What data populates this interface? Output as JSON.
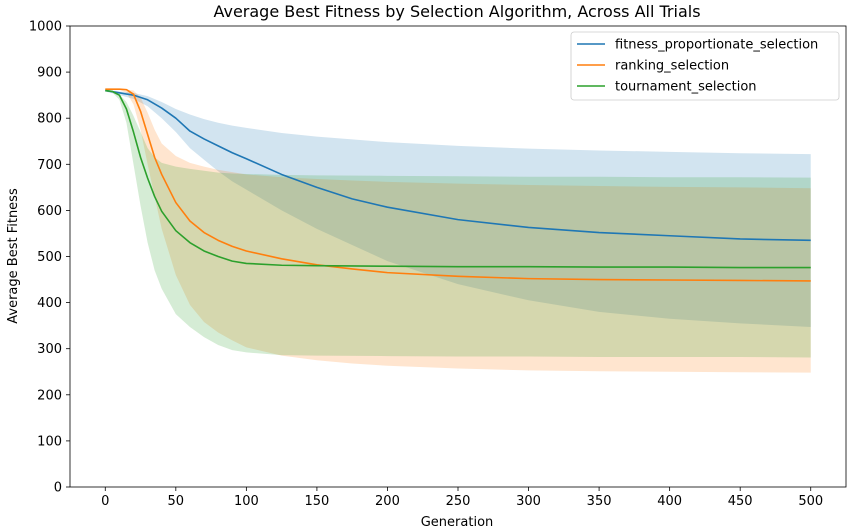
{
  "chart_data": {
    "type": "line",
    "title": "Average Best Fitness by Selection Algorithm, Across All Trials",
    "xlabel": "Generation",
    "ylabel": "Average Best Fitness",
    "xlim": [
      -25,
      525
    ],
    "ylim": [
      0,
      1000
    ],
    "xticks": [
      0,
      50,
      100,
      150,
      200,
      250,
      300,
      350,
      400,
      450,
      500
    ],
    "yticks": [
      0,
      100,
      200,
      300,
      400,
      500,
      600,
      700,
      800,
      900,
      1000
    ],
    "legend_position": "top-right",
    "grid": false,
    "band_opacity": 0.2,
    "series": [
      {
        "name": "fitness_proportionate_selection",
        "color": "#1f77b4",
        "x": [
          0,
          10,
          20,
          30,
          40,
          50,
          60,
          70,
          80,
          90,
          100,
          125,
          150,
          175,
          200,
          250,
          300,
          350,
          400,
          450,
          500
        ],
        "mean": [
          860,
          855,
          850,
          840,
          822,
          800,
          772,
          755,
          740,
          725,
          712,
          678,
          650,
          625,
          607,
          580,
          563,
          552,
          545,
          538,
          535
        ],
        "upper": [
          862,
          858,
          855,
          848,
          835,
          820,
          808,
          798,
          790,
          784,
          779,
          768,
          760,
          754,
          748,
          740,
          734,
          730,
          727,
          724,
          722
        ],
        "lower": [
          858,
          850,
          842,
          826,
          800,
          770,
          735,
          710,
          685,
          663,
          645,
          600,
          560,
          525,
          490,
          440,
          405,
          380,
          365,
          355,
          347
        ]
      },
      {
        "name": "ranking_selection",
        "color": "#ff7f0e",
        "x": [
          0,
          10,
          15,
          20,
          25,
          30,
          35,
          40,
          50,
          60,
          70,
          80,
          90,
          100,
          125,
          150,
          175,
          200,
          250,
          300,
          350,
          400,
          450,
          500
        ],
        "mean": [
          863,
          863,
          862,
          852,
          815,
          765,
          715,
          678,
          617,
          577,
          552,
          535,
          522,
          512,
          495,
          482,
          473,
          465,
          457,
          452,
          450,
          449,
          448,
          447
        ],
        "upper": [
          863,
          863,
          862,
          860,
          845,
          812,
          775,
          745,
          718,
          703,
          695,
          688,
          683,
          678,
          672,
          668,
          665,
          662,
          658,
          655,
          653,
          651,
          650,
          648
        ],
        "lower": [
          863,
          862,
          855,
          830,
          775,
          700,
          630,
          560,
          460,
          395,
          358,
          335,
          318,
          303,
          285,
          275,
          268,
          263,
          257,
          253,
          251,
          250,
          249,
          248
        ]
      },
      {
        "name": "tournament_selection",
        "color": "#2ca02c",
        "x": [
          0,
          5,
          10,
          15,
          20,
          25,
          30,
          35,
          40,
          50,
          60,
          70,
          80,
          90,
          100,
          125,
          150,
          200,
          250,
          300,
          350,
          400,
          450,
          500
        ],
        "mean": [
          860,
          858,
          850,
          820,
          770,
          715,
          670,
          630,
          598,
          556,
          530,
          512,
          500,
          490,
          485,
          481,
          480,
          479,
          478,
          478,
          477,
          477,
          476,
          476
        ],
        "upper": [
          860,
          858,
          852,
          835,
          805,
          770,
          735,
          715,
          703,
          695,
          690,
          686,
          682,
          680,
          679,
          677,
          676,
          675,
          674,
          673,
          673,
          672,
          672,
          671
        ],
        "lower": [
          860,
          856,
          840,
          790,
          700,
          610,
          530,
          470,
          430,
          375,
          347,
          325,
          308,
          297,
          292,
          286,
          285,
          284,
          283,
          283,
          282,
          282,
          282,
          281
        ]
      }
    ]
  }
}
